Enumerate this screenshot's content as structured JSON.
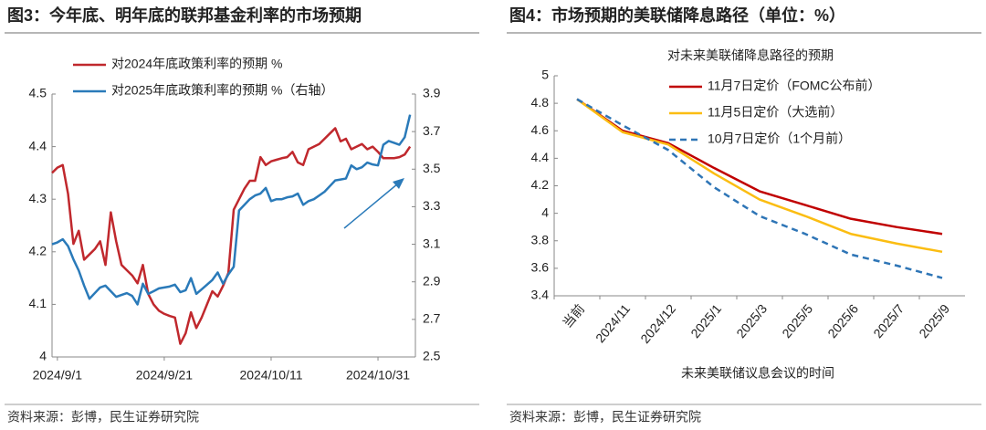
{
  "chart_data": [
    {
      "type": "line",
      "title": "图3：今年底、明年底的联邦基金利率的市场预期",
      "source": "资料来源：彭博，民生证券研究院",
      "x": [
        "2024/8/31",
        "2024/9/1",
        "2024/9/2",
        "2024/9/3",
        "2024/9/4",
        "2024/9/5",
        "2024/9/6",
        "2024/9/7",
        "2024/9/8",
        "2024/9/9",
        "2024/9/10",
        "2024/9/11",
        "2024/9/12",
        "2024/9/13",
        "2024/9/14",
        "2024/9/15",
        "2024/9/16",
        "2024/9/17",
        "2024/9/18",
        "2024/9/19",
        "2024/9/20",
        "2024/9/21",
        "2024/9/22",
        "2024/9/23",
        "2024/9/24",
        "2024/9/25",
        "2024/9/26",
        "2024/9/27",
        "2024/9/28",
        "2024/9/29",
        "2024/9/30",
        "2024/10/1",
        "2024/10/2",
        "2024/10/3",
        "2024/10/4",
        "2024/10/5",
        "2024/10/6",
        "2024/10/7",
        "2024/10/8",
        "2024/10/9",
        "2024/10/10",
        "2024/10/11",
        "2024/10/12",
        "2024/10/13",
        "2024/10/14",
        "2024/10/15",
        "2024/10/16",
        "2024/10/17",
        "2024/10/18",
        "2024/10/19",
        "2024/10/20",
        "2024/10/21",
        "2024/10/22",
        "2024/10/23",
        "2024/10/24",
        "2024/10/25",
        "2024/10/26",
        "2024/10/27",
        "2024/10/28",
        "2024/10/29",
        "2024/10/30",
        "2024/10/31",
        "2024/11/1",
        "2024/11/2",
        "2024/11/3",
        "2024/11/4",
        "2024/11/5",
        "2024/11/6"
      ],
      "series": [
        {
          "name": "对2024年底政策利率的预期 %",
          "color": "#c0282d",
          "axis": "y",
          "values": [
            4.35,
            4.36,
            4.365,
            4.31,
            4.215,
            4.24,
            4.185,
            4.195,
            4.205,
            4.22,
            4.175,
            4.275,
            4.22,
            4.175,
            4.165,
            4.155,
            4.14,
            4.175,
            4.12,
            4.1,
            4.088,
            4.082,
            4.078,
            4.075,
            4.025,
            4.045,
            4.085,
            4.055,
            4.075,
            4.1,
            4.125,
            4.115,
            4.135,
            4.16,
            4.28,
            4.3,
            4.32,
            4.335,
            4.335,
            4.38,
            4.365,
            4.372,
            4.375,
            4.378,
            4.38,
            4.39,
            4.37,
            4.365,
            4.395,
            4.4,
            4.405,
            4.415,
            4.425,
            4.435,
            4.41,
            4.415,
            4.395,
            4.4,
            4.405,
            4.395,
            4.4,
            4.39,
            4.378,
            4.378,
            4.378,
            4.38,
            4.385,
            4.4
          ]
        },
        {
          "name": "对2025年底政策利率的预期 %（右轴）",
          "color": "#2a7ab9",
          "axis": "y2",
          "values": [
            3.1,
            3.11,
            3.127,
            3.09,
            3.02,
            2.96,
            2.88,
            2.81,
            2.84,
            2.87,
            2.88,
            2.85,
            2.82,
            2.83,
            2.84,
            2.825,
            2.78,
            2.89,
            2.836,
            2.85,
            2.865,
            2.87,
            2.875,
            2.885,
            2.845,
            2.855,
            2.92,
            2.836,
            2.86,
            2.885,
            2.91,
            2.95,
            2.89,
            2.94,
            2.98,
            3.28,
            3.31,
            3.34,
            3.36,
            3.37,
            3.4,
            3.33,
            3.34,
            3.34,
            3.35,
            3.355,
            3.37,
            3.31,
            3.33,
            3.34,
            3.36,
            3.38,
            3.41,
            3.44,
            3.445,
            3.45,
            3.52,
            3.5,
            3.51,
            3.535,
            3.525,
            3.52,
            3.63,
            3.65,
            3.64,
            3.63,
            3.67,
            3.79
          ]
        }
      ],
      "xlim": [
        "2024/8/31",
        "2024/11/7"
      ],
      "xticks": [
        "2024/9/1",
        "2024/9/21",
        "2024/10/11",
        "2024/10/31"
      ],
      "ylim": [
        4,
        4.5
      ],
      "yticks": [
        4,
        4.1,
        4.2,
        4.3,
        4.4,
        4.5
      ],
      "y2lim": [
        2.5,
        3.9
      ],
      "y2ticks": [
        2.5,
        2.7,
        2.9,
        3.1,
        3.3,
        3.5,
        3.7,
        3.9
      ],
      "grid": false
    },
    {
      "type": "line",
      "title": "图4：市场预期的美联储降息路径（单位：%）",
      "source": "资料来源：彭博，民生证券研究院",
      "subtitle": "对未来美联储降息路径的预期",
      "x_label": "未来美联储议息会议的时间",
      "categories": [
        "当前",
        "2024/11",
        "2024/12",
        "2025/1",
        "2025/3",
        "2025/5",
        "2025/6",
        "2025/7",
        "2025/9"
      ],
      "series": [
        {
          "name": "11月7日定价（FOMC公布前）",
          "color": "#c00000",
          "dashed": false,
          "values": [
            4.83,
            4.6,
            4.51,
            4.33,
            4.16,
            4.06,
            3.96,
            3.9,
            3.85
          ]
        },
        {
          "name": "11月5日定价（大选前）",
          "color": "#fbbd12",
          "dashed": false,
          "values": [
            4.83,
            4.59,
            4.5,
            4.29,
            4.1,
            3.98,
            3.85,
            3.78,
            3.72
          ]
        },
        {
          "name": "10月7日定价（1个月前）",
          "color": "#2e75b6",
          "dashed": true,
          "values": [
            4.83,
            4.64,
            4.46,
            4.19,
            3.98,
            3.85,
            3.7,
            3.62,
            3.53
          ]
        }
      ],
      "ylim": [
        3.4,
        5
      ],
      "yticks": [
        3.4,
        3.6,
        3.8,
        4,
        4.2,
        4.4,
        4.6,
        4.8,
        5
      ],
      "grid": false
    }
  ]
}
